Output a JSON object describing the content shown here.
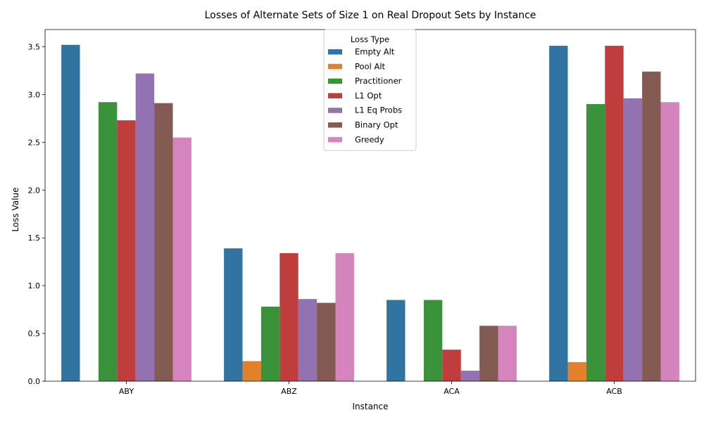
{
  "chart_data": {
    "type": "bar",
    "title": "Losses of Alternate Sets of Size 1 on Real Dropout Sets by Instance",
    "xlabel": "Instance",
    "ylabel": "Loss Value",
    "categories": [
      "ABY",
      "ABZ",
      "ACA",
      "ACB"
    ],
    "ylim": [
      0,
      3.68
    ],
    "yticks": [
      "0.0",
      "0.5",
      "1.0",
      "1.5",
      "2.0",
      "2.5",
      "3.0",
      "3.5"
    ],
    "grid": false,
    "legend": {
      "title": "Loss Type",
      "placement": "top-center"
    },
    "series": [
      {
        "name": "Empty Alt",
        "color": "#3274a1",
        "values": [
          3.52,
          1.39,
          0.85,
          3.51
        ]
      },
      {
        "name": "Pool Alt",
        "color": "#e1812c",
        "values": [
          0.0,
          0.21,
          0.0,
          0.2
        ]
      },
      {
        "name": "Practitioner",
        "color": "#3a923a",
        "values": [
          2.92,
          0.78,
          0.85,
          2.9
        ]
      },
      {
        "name": "L1 Opt",
        "color": "#c03d3e",
        "values": [
          2.73,
          1.34,
          0.33,
          3.51
        ]
      },
      {
        "name": "L1 Eq Probs",
        "color": "#9372b2",
        "values": [
          3.22,
          0.86,
          0.11,
          2.96
        ]
      },
      {
        "name": "Binary Opt",
        "color": "#845b53",
        "values": [
          2.91,
          0.82,
          0.58,
          3.24
        ]
      },
      {
        "name": "Greedy",
        "color": "#d684bd",
        "values": [
          2.55,
          1.34,
          0.58,
          2.92
        ]
      }
    ]
  }
}
